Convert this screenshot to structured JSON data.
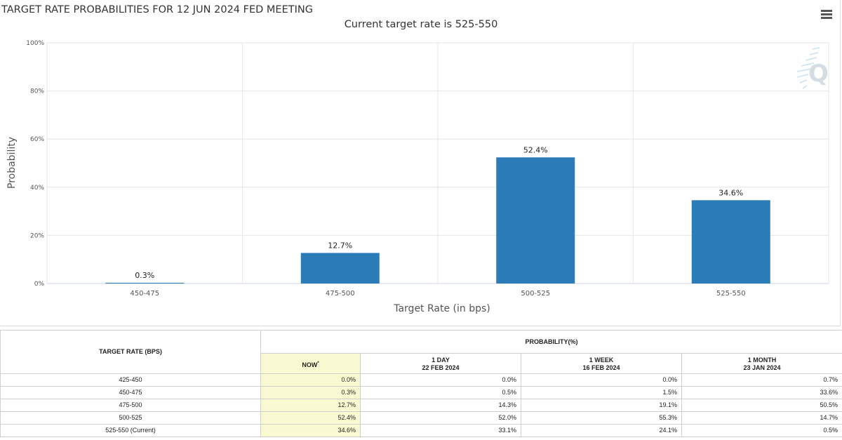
{
  "chart": {
    "title": "TARGET RATE PROBABILITIES FOR 12 JUN 2024 FED MEETING",
    "subtitle": "Current target rate is 525-550"
  },
  "colors": {
    "bar": "#2b7bb9",
    "grid": "#e6e6e6",
    "axis": "#ccd6eb",
    "now_highlight": "#fafad2"
  },
  "icons": {
    "menu": "hamburger-menu-icon",
    "watermark": "cme-quikstrike-logo"
  },
  "chart_data": {
    "type": "bar",
    "categories": [
      "450-475",
      "475-500",
      "500-525",
      "525-550"
    ],
    "values": [
      0.3,
      12.7,
      52.4,
      34.6
    ],
    "data_labels": [
      "0.3%",
      "12.7%",
      "52.4%",
      "34.6%"
    ],
    "xlabel": "Target Rate (in bps)",
    "ylabel": "Probability",
    "ylim": [
      0,
      100
    ],
    "yticks": [
      0,
      20,
      40,
      60,
      80,
      100
    ],
    "ytick_labels": [
      "0%",
      "20%",
      "40%",
      "60%",
      "80%",
      "100%"
    ],
    "grid": true,
    "legend": "none"
  },
  "table": {
    "target_rate_header": "TARGET RATE (BPS)",
    "probability_header": "PROBABILITY(%)",
    "columns": [
      {
        "line1": "NOW",
        "marker": "*",
        "line2": ""
      },
      {
        "line1": "1 DAY",
        "line2": "22 FEB 2024"
      },
      {
        "line1": "1 WEEK",
        "line2": "16 FEB 2024"
      },
      {
        "line1": "1 MONTH",
        "line2": "23 JAN 2024"
      }
    ],
    "rows": [
      {
        "rate": "425-450",
        "values": [
          "0.0%",
          "0.0%",
          "0.0%",
          "0.7%"
        ]
      },
      {
        "rate": "450-475",
        "values": [
          "0.3%",
          "0.5%",
          "1.5%",
          "33.6%"
        ]
      },
      {
        "rate": "475-500",
        "values": [
          "12.7%",
          "14.3%",
          "19.1%",
          "50.5%"
        ]
      },
      {
        "rate": "500-525",
        "values": [
          "52.4%",
          "52.0%",
          "55.3%",
          "14.7%"
        ]
      },
      {
        "rate": "525-550 (Current)",
        "values": [
          "34.6%",
          "33.1%",
          "24.1%",
          "0.5%"
        ]
      }
    ]
  }
}
